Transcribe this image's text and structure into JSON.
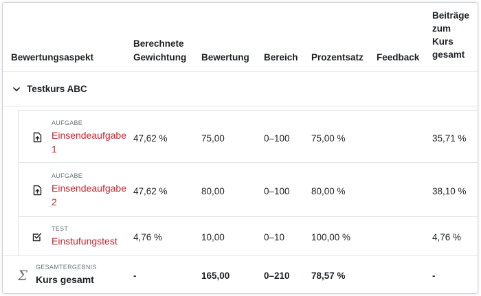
{
  "columns": {
    "aspect": "Bewertungsaspekt",
    "weight_line1": "Berechnete",
    "weight_line2": "Gewichtung",
    "grade": "Bewertung",
    "range": "Bereich",
    "percent": "Prozentsatz",
    "feedback": "Feedback",
    "contrib_line1": "Beiträge",
    "contrib_line2": "zum",
    "contrib_line3": "Kurs",
    "contrib_line4": "gesamt"
  },
  "course": {
    "name": "Testkurs ABC",
    "toggle_icon": "chevron-down-icon"
  },
  "rows": [
    {
      "type": "AUFGABE",
      "name_line1": "Einsendeaufgabe",
      "name_line2": "1",
      "icon": "assignment-upload-icon",
      "weight": "47,62 %",
      "grade": "75,00",
      "range": "0–100",
      "percent": "75,00 %",
      "feedback": "",
      "contribution": "35,71 %"
    },
    {
      "type": "AUFGABE",
      "name_line1": "Einsendeaufgabe",
      "name_line2": "2",
      "icon": "assignment-upload-icon",
      "weight": "47,62 %",
      "grade": "80,00",
      "range": "0–100",
      "percent": "80,00 %",
      "feedback": "",
      "contribution": "38,10 %"
    },
    {
      "type": "TEST",
      "name_line1": "Einstufungstest",
      "name_line2": "",
      "icon": "quiz-checkbox-icon",
      "weight": "4,76 %",
      "grade": "10,00",
      "range": "0–10",
      "percent": "100,00 %",
      "feedback": "",
      "contribution": "4,76 %"
    }
  ],
  "total": {
    "type": "GESAMTERGEBNIS",
    "name": "Kurs gesamt",
    "icon": "sigma-icon",
    "weight": "-",
    "grade": "165,00",
    "range": "0–210",
    "percent": "78,57 %",
    "contribution": "-"
  },
  "colors": {
    "link": "#c0272d",
    "text": "#1d2125",
    "muted": "#6a737b",
    "border": "#dee2e6"
  }
}
